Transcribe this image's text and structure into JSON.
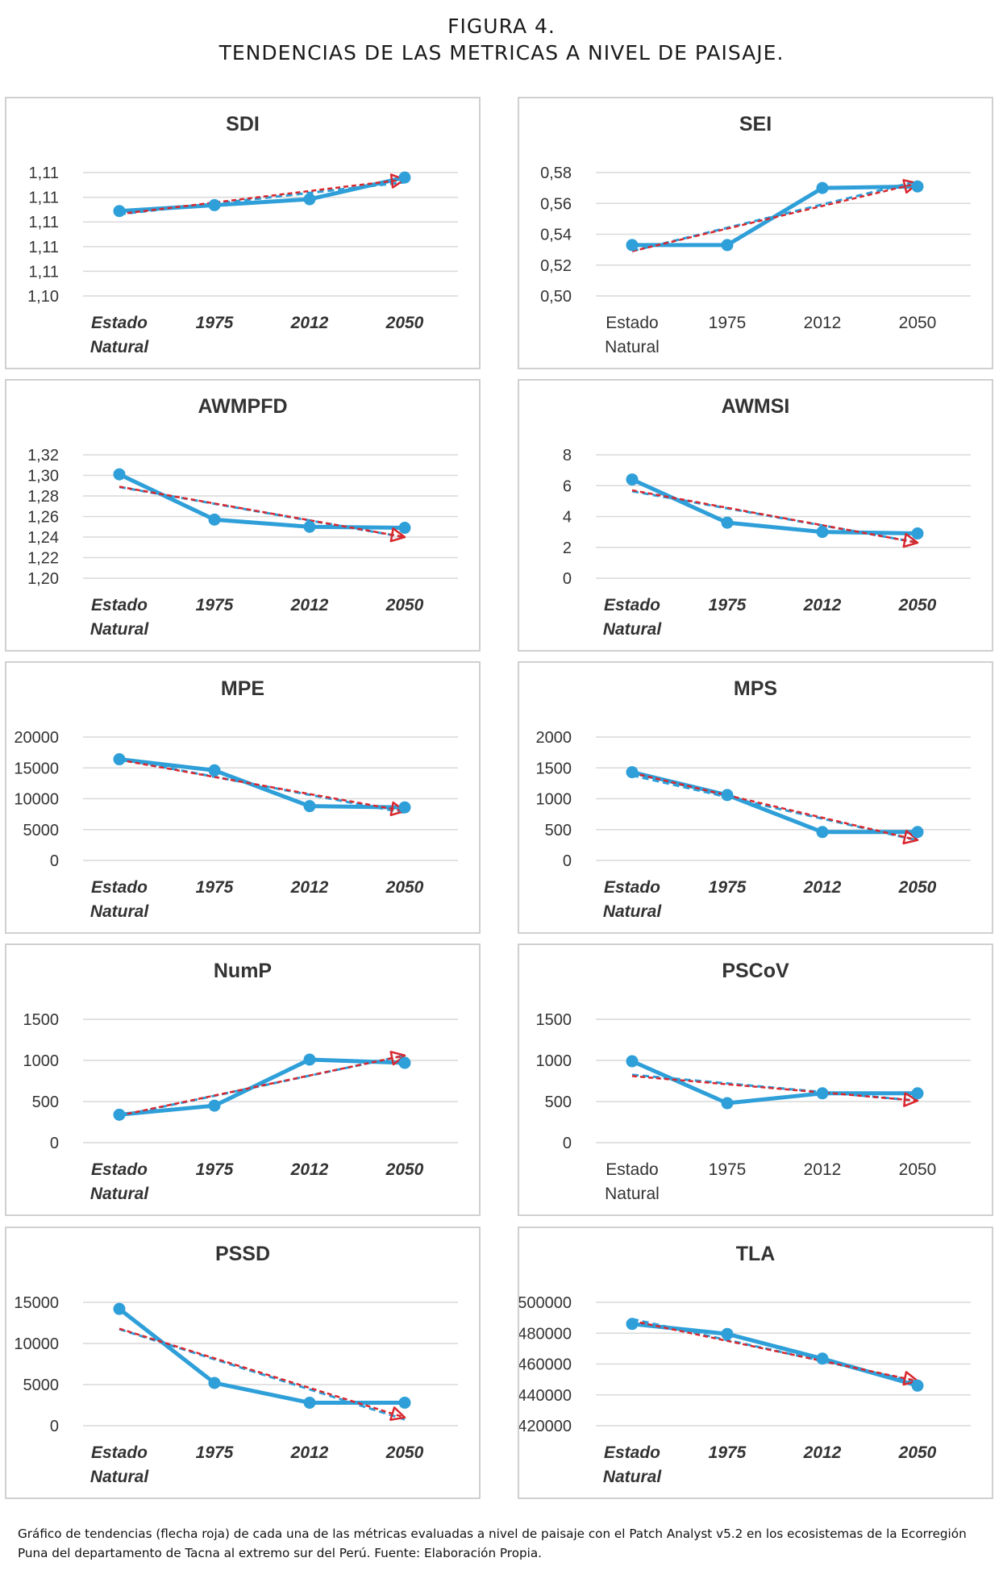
{
  "figure": {
    "number": "FIGURA 4.",
    "title": "TENDENCIAS DE LAS METRICAS A NIVEL DE PAISAJE."
  },
  "caption": "Gráfico de tendencias (flecha roja) de cada una de las métricas evaluadas a nivel de paisaje con el Patch Analyst v5.2 en los ecosistemas de la Ecorregión Puna del departamento de Tacna al extremo sur del Perú. Fuente: Elaboración Propia.",
  "colors": {
    "series": "#2e9fd8",
    "trend": "#d9272e",
    "grid": "#d9d9d9",
    "border": "#d0d0d0"
  },
  "chart_data": [
    {
      "type": "line",
      "title": "SDI",
      "categories": [
        "Estado Natural",
        "1975",
        "2012",
        "2050"
      ],
      "category_lines": [
        [
          "Estado",
          "Natural"
        ],
        [
          "1975"
        ],
        [
          "2012"
        ],
        [
          "2050"
        ]
      ],
      "values": [
        1.1086,
        1.1092,
        1.1098,
        1.112
      ],
      "trend": [
        1.1083,
        1.1095,
        1.1107,
        1.1118
      ],
      "ylim": [
        1.1,
        1.1125
      ],
      "yticks": [
        "1,10",
        "1,11",
        "1,11",
        "1,11",
        "1,11",
        "1,11"
      ],
      "italic_categories": true
    },
    {
      "type": "line",
      "title": "SEI",
      "categories": [
        "Estado Natural",
        "1975",
        "2012",
        "2050"
      ],
      "category_lines": [
        [
          "Estado",
          "Natural"
        ],
        [
          "1975"
        ],
        [
          "2012"
        ],
        [
          "2050"
        ]
      ],
      "values": [
        0.533,
        0.533,
        0.57,
        0.571
      ],
      "trend": [
        0.529,
        0.543,
        0.557,
        0.573
      ],
      "ylim": [
        0.5,
        0.58
      ],
      "yticks": [
        "0,50",
        "0,52",
        "0,54",
        "0,56",
        "0,58"
      ],
      "italic_categories": false
    },
    {
      "type": "line",
      "title": "AWMPFD",
      "categories": [
        "Estado Natural",
        "1975",
        "2012",
        "2050"
      ],
      "category_lines": [
        [
          "Estado",
          "Natural"
        ],
        [
          "1975"
        ],
        [
          "2012"
        ],
        [
          "2050"
        ]
      ],
      "values": [
        1.301,
        1.257,
        1.25,
        1.249
      ],
      "trend": [
        1.289,
        1.272,
        1.256,
        1.24
      ],
      "ylim": [
        1.2,
        1.32
      ],
      "yticks": [
        "1,20",
        "1,22",
        "1,24",
        "1,26",
        "1,28",
        "1,30",
        "1,32"
      ],
      "italic_categories": true
    },
    {
      "type": "line",
      "title": "AWMSI",
      "categories": [
        "Estado Natural",
        "1975",
        "2012",
        "2050"
      ],
      "category_lines": [
        [
          "Estado",
          "Natural"
        ],
        [
          "1975"
        ],
        [
          "2012"
        ],
        [
          "2050"
        ]
      ],
      "values": [
        6.4,
        3.6,
        3.0,
        2.9
      ],
      "trend": [
        5.7,
        4.6,
        3.4,
        2.3
      ],
      "ylim": [
        0,
        8
      ],
      "yticks": [
        "0",
        "2",
        "4",
        "6",
        "8"
      ],
      "italic_categories": true
    },
    {
      "type": "line",
      "title": "MPE",
      "categories": [
        "Estado Natural",
        "1975",
        "2012",
        "2050"
      ],
      "category_lines": [
        [
          "Estado",
          "Natural"
        ],
        [
          "1975"
        ],
        [
          "2012"
        ],
        [
          "2050"
        ]
      ],
      "values": [
        16400,
        14600,
        8800,
        8600
      ],
      "trend": [
        16300,
        13600,
        10600,
        8000
      ],
      "ylim": [
        0,
        20000
      ],
      "yticks": [
        "0",
        "5000",
        "10000",
        "15000",
        "20000"
      ],
      "italic_categories": true
    },
    {
      "type": "line",
      "title": "MPS",
      "categories": [
        "Estado Natural",
        "1975",
        "2012",
        "2050"
      ],
      "category_lines": [
        [
          "Estado",
          "Natural"
        ],
        [
          "1975"
        ],
        [
          "2012"
        ],
        [
          "2050"
        ]
      ],
      "values": [
        1430,
        1060,
        460,
        460
      ],
      "trend": [
        1420,
        1050,
        660,
        330
      ],
      "ylim": [
        0,
        2000
      ],
      "yticks": [
        "0",
        "500",
        "1000",
        "1500",
        "2000"
      ],
      "italic_categories": true
    },
    {
      "type": "line",
      "title": "NumP",
      "categories": [
        "Estado Natural",
        "1975",
        "2012",
        "2050"
      ],
      "category_lines": [
        [
          "Estado",
          "Natural"
        ],
        [
          "1975"
        ],
        [
          "2012"
        ],
        [
          "2050"
        ]
      ],
      "values": [
        340,
        450,
        1010,
        970
      ],
      "trend": [
        330,
        580,
        810,
        1060
      ],
      "ylim": [
        0,
        1500
      ],
      "yticks": [
        "0",
        "500",
        "1000",
        "1500"
      ],
      "italic_categories": true
    },
    {
      "type": "line",
      "title": "PSCoV",
      "categories": [
        "Estado Natural",
        "1975",
        "2012",
        "2050"
      ],
      "category_lines": [
        [
          "Estado",
          "Natural"
        ],
        [
          "1975"
        ],
        [
          "2012"
        ],
        [
          "2050"
        ]
      ],
      "values": [
        990,
        480,
        600,
        600
      ],
      "trend": [
        810,
        700,
        600,
        510
      ],
      "ylim": [
        0,
        1500
      ],
      "yticks": [
        "0",
        "500",
        "1000",
        "1500"
      ],
      "italic_categories": false
    },
    {
      "type": "line",
      "title": "PSSD",
      "categories": [
        "Estado Natural",
        "1975",
        "2012",
        "2050"
      ],
      "category_lines": [
        [
          "Estado",
          "Natural"
        ],
        [
          "1975"
        ],
        [
          "2012"
        ],
        [
          "2050"
        ]
      ],
      "values": [
        14200,
        5200,
        2800,
        2800
      ],
      "trend": [
        11800,
        8200,
        4500,
        1000
      ],
      "ylim": [
        0,
        15000
      ],
      "yticks": [
        "0",
        "5000",
        "10000",
        "15000"
      ],
      "italic_categories": true
    },
    {
      "type": "line",
      "title": "TLA",
      "categories": [
        "Estado Natural",
        "1975",
        "2012",
        "2050"
      ],
      "category_lines": [
        [
          "Estado",
          "Natural"
        ],
        [
          "1975"
        ],
        [
          "2012"
        ],
        [
          "2050"
        ]
      ],
      "values": [
        486000,
        479500,
        463500,
        446000
      ],
      "trend": [
        488000,
        476000,
        462000,
        449000
      ],
      "ylim": [
        420000,
        500000
      ],
      "yticks": [
        "420000",
        "440000",
        "460000",
        "480000",
        "500000"
      ],
      "italic_categories": true
    }
  ]
}
